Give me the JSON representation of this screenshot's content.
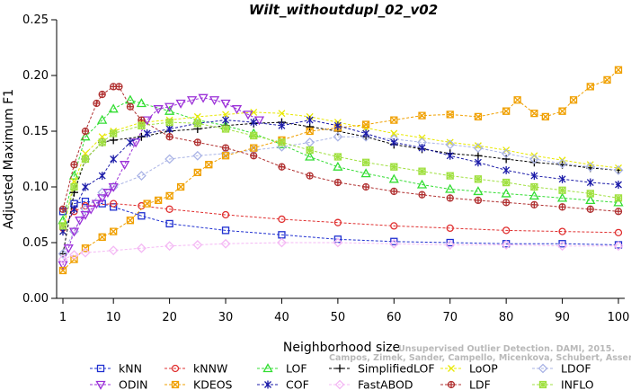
{
  "chart_data": {
    "type": "line",
    "title": "Wilt_withoutdupl_02_v02",
    "xlabel": "Neighborhood size",
    "ylabel": "Adjusted Maximum F1",
    "xlim": [
      1,
      100
    ],
    "ylim": [
      0,
      0.25
    ],
    "xticks": [
      1,
      10,
      20,
      30,
      40,
      50,
      60,
      70,
      80,
      90,
      100
    ],
    "yticks": [
      0.0,
      0.05,
      0.1,
      0.15,
      0.2,
      0.25
    ],
    "ytick_labels": [
      "0.00",
      "0.05",
      "0.10",
      "0.15",
      "0.20",
      "0.25"
    ],
    "grid": false,
    "legend_position": "bottom",
    "watermark_lines": [
      "Unsupervised Outlier Detection. DAMI, 2015.",
      "Campos, Zimek, Sander, Campello, Micenkova, Schubert, Assent, Houle"
    ],
    "series": [
      {
        "name": "kNN",
        "color": "#1f2fd0",
        "marker": "square",
        "points": [
          [
            1,
            0.078
          ],
          [
            3,
            0.085
          ],
          [
            5,
            0.087
          ],
          [
            8,
            0.085
          ],
          [
            10,
            0.082
          ],
          [
            15,
            0.074
          ],
          [
            20,
            0.067
          ],
          [
            30,
            0.061
          ],
          [
            40,
            0.057
          ],
          [
            50,
            0.053
          ],
          [
            60,
            0.051
          ],
          [
            70,
            0.05
          ],
          [
            80,
            0.049
          ],
          [
            90,
            0.049
          ],
          [
            100,
            0.048
          ]
        ]
      },
      {
        "name": "kNNW",
        "color": "#e03030",
        "marker": "circle",
        "points": [
          [
            1,
            0.063
          ],
          [
            3,
            0.078
          ],
          [
            5,
            0.083
          ],
          [
            10,
            0.085
          ],
          [
            15,
            0.083
          ],
          [
            20,
            0.08
          ],
          [
            30,
            0.075
          ],
          [
            40,
            0.071
          ],
          [
            50,
            0.068
          ],
          [
            60,
            0.065
          ],
          [
            70,
            0.063
          ],
          [
            80,
            0.061
          ],
          [
            90,
            0.06
          ],
          [
            100,
            0.059
          ]
        ]
      },
      {
        "name": "LOF",
        "color": "#33dd33",
        "marker": "triangle-up",
        "points": [
          [
            1,
            0.07
          ],
          [
            3,
            0.11
          ],
          [
            5,
            0.145
          ],
          [
            8,
            0.16
          ],
          [
            10,
            0.17
          ],
          [
            13,
            0.178
          ],
          [
            15,
            0.175
          ],
          [
            20,
            0.168
          ],
          [
            25,
            0.16
          ],
          [
            30,
            0.155
          ],
          [
            35,
            0.148
          ],
          [
            40,
            0.138
          ],
          [
            45,
            0.127
          ],
          [
            50,
            0.118
          ],
          [
            55,
            0.112
          ],
          [
            60,
            0.107
          ],
          [
            65,
            0.102
          ],
          [
            70,
            0.098
          ],
          [
            75,
            0.096
          ],
          [
            80,
            0.094
          ],
          [
            85,
            0.092
          ],
          [
            90,
            0.09
          ],
          [
            95,
            0.088
          ],
          [
            100,
            0.086
          ]
        ]
      },
      {
        "name": "SimplifiedLOF",
        "color": "#000000",
        "marker": "plus",
        "points": [
          [
            1,
            0.04
          ],
          [
            3,
            0.095
          ],
          [
            5,
            0.125
          ],
          [
            8,
            0.14
          ],
          [
            10,
            0.142
          ],
          [
            15,
            0.145
          ],
          [
            20,
            0.15
          ],
          [
            25,
            0.152
          ],
          [
            30,
            0.155
          ],
          [
            35,
            0.157
          ],
          [
            40,
            0.158
          ],
          [
            45,
            0.154
          ],
          [
            50,
            0.15
          ],
          [
            55,
            0.145
          ],
          [
            60,
            0.138
          ],
          [
            65,
            0.134
          ],
          [
            70,
            0.13
          ],
          [
            75,
            0.128
          ],
          [
            80,
            0.125
          ],
          [
            85,
            0.122
          ],
          [
            90,
            0.12
          ],
          [
            95,
            0.117
          ],
          [
            100,
            0.115
          ]
        ]
      },
      {
        "name": "LoOP",
        "color": "#e8e800",
        "marker": "x",
        "points": [
          [
            1,
            0.06
          ],
          [
            3,
            0.105
          ],
          [
            5,
            0.13
          ],
          [
            8,
            0.145
          ],
          [
            10,
            0.15
          ],
          [
            15,
            0.158
          ],
          [
            20,
            0.16
          ],
          [
            25,
            0.163
          ],
          [
            30,
            0.165
          ],
          [
            35,
            0.167
          ],
          [
            40,
            0.166
          ],
          [
            45,
            0.163
          ],
          [
            50,
            0.158
          ],
          [
            55,
            0.153
          ],
          [
            60,
            0.148
          ],
          [
            65,
            0.144
          ],
          [
            70,
            0.14
          ],
          [
            75,
            0.137
          ],
          [
            80,
            0.133
          ],
          [
            85,
            0.128
          ],
          [
            90,
            0.124
          ],
          [
            95,
            0.12
          ],
          [
            100,
            0.117
          ]
        ]
      },
      {
        "name": "LDOF",
        "color": "#aab4e6",
        "marker": "diamond",
        "points": [
          [
            1,
            0.04
          ],
          [
            3,
            0.06
          ],
          [
            5,
            0.08
          ],
          [
            8,
            0.095
          ],
          [
            10,
            0.1
          ],
          [
            15,
            0.11
          ],
          [
            20,
            0.125
          ],
          [
            25,
            0.128
          ],
          [
            30,
            0.13
          ],
          [
            35,
            0.133
          ],
          [
            40,
            0.136
          ],
          [
            45,
            0.14
          ],
          [
            50,
            0.145
          ],
          [
            55,
            0.145
          ],
          [
            60,
            0.143
          ],
          [
            65,
            0.14
          ],
          [
            70,
            0.138
          ],
          [
            75,
            0.135
          ],
          [
            80,
            0.13
          ],
          [
            85,
            0.125
          ],
          [
            90,
            0.121
          ],
          [
            95,
            0.118
          ],
          [
            100,
            0.115
          ]
        ]
      },
      {
        "name": "ODIN",
        "color": "#9b30d8",
        "marker": "triangle-down",
        "points": [
          [
            1,
            0.03
          ],
          [
            2,
            0.045
          ],
          [
            3,
            0.06
          ],
          [
            4,
            0.07
          ],
          [
            5,
            0.075
          ],
          [
            6,
            0.08
          ],
          [
            7,
            0.085
          ],
          [
            8,
            0.09
          ],
          [
            9,
            0.095
          ],
          [
            10,
            0.1
          ],
          [
            12,
            0.12
          ],
          [
            14,
            0.14
          ],
          [
            16,
            0.16
          ],
          [
            18,
            0.17
          ],
          [
            20,
            0.172
          ],
          [
            22,
            0.175
          ],
          [
            24,
            0.178
          ],
          [
            26,
            0.18
          ],
          [
            28,
            0.178
          ],
          [
            30,
            0.175
          ],
          [
            32,
            0.17
          ],
          [
            34,
            0.165
          ],
          [
            36,
            0.16
          ]
        ]
      },
      {
        "name": "KDEOS",
        "color": "#f0a000",
        "marker": "square-x",
        "points": [
          [
            1,
            0.025
          ],
          [
            3,
            0.035
          ],
          [
            5,
            0.045
          ],
          [
            8,
            0.055
          ],
          [
            10,
            0.06
          ],
          [
            13,
            0.07
          ],
          [
            16,
            0.085
          ],
          [
            18,
            0.088
          ],
          [
            20,
            0.092
          ],
          [
            22,
            0.1
          ],
          [
            25,
            0.113
          ],
          [
            27,
            0.12
          ],
          [
            30,
            0.128
          ],
          [
            35,
            0.135
          ],
          [
            40,
            0.142
          ],
          [
            45,
            0.15
          ],
          [
            50,
            0.153
          ],
          [
            55,
            0.156
          ],
          [
            60,
            0.16
          ],
          [
            65,
            0.164
          ],
          [
            70,
            0.165
          ],
          [
            75,
            0.163
          ],
          [
            80,
            0.168
          ],
          [
            82,
            0.178
          ],
          [
            85,
            0.166
          ],
          [
            87,
            0.163
          ],
          [
            90,
            0.168
          ],
          [
            92,
            0.178
          ],
          [
            95,
            0.19
          ],
          [
            98,
            0.196
          ],
          [
            100,
            0.205
          ]
        ]
      },
      {
        "name": "COF",
        "color": "#1a1aa8",
        "marker": "asterisk",
        "points": [
          [
            1,
            0.06
          ],
          [
            3,
            0.08
          ],
          [
            5,
            0.1
          ],
          [
            8,
            0.11
          ],
          [
            10,
            0.125
          ],
          [
            13,
            0.14
          ],
          [
            16,
            0.148
          ],
          [
            20,
            0.152
          ],
          [
            25,
            0.157
          ],
          [
            30,
            0.16
          ],
          [
            35,
            0.158
          ],
          [
            40,
            0.155
          ],
          [
            45,
            0.16
          ],
          [
            50,
            0.155
          ],
          [
            55,
            0.148
          ],
          [
            60,
            0.14
          ],
          [
            65,
            0.135
          ],
          [
            70,
            0.128
          ],
          [
            75,
            0.122
          ],
          [
            80,
            0.115
          ],
          [
            85,
            0.11
          ],
          [
            90,
            0.107
          ],
          [
            95,
            0.104
          ],
          [
            100,
            0.102
          ]
        ]
      },
      {
        "name": "FastABOD",
        "color": "#f4b8f4",
        "marker": "diamond",
        "points": [
          [
            1,
            0.035
          ],
          [
            3,
            0.039
          ],
          [
            5,
            0.041
          ],
          [
            10,
            0.043
          ],
          [
            15,
            0.045
          ],
          [
            20,
            0.047
          ],
          [
            25,
            0.048
          ],
          [
            30,
            0.049
          ],
          [
            40,
            0.05
          ],
          [
            50,
            0.05
          ],
          [
            60,
            0.049
          ],
          [
            70,
            0.048
          ],
          [
            80,
            0.048
          ],
          [
            90,
            0.047
          ],
          [
            100,
            0.047
          ]
        ]
      },
      {
        "name": "LDF",
        "color": "#b03030",
        "marker": "circle-plus",
        "points": [
          [
            1,
            0.08
          ],
          [
            3,
            0.12
          ],
          [
            5,
            0.15
          ],
          [
            7,
            0.175
          ],
          [
            8,
            0.183
          ],
          [
            10,
            0.19
          ],
          [
            11,
            0.19
          ],
          [
            13,
            0.172
          ],
          [
            15,
            0.16
          ],
          [
            20,
            0.145
          ],
          [
            25,
            0.14
          ],
          [
            30,
            0.135
          ],
          [
            35,
            0.128
          ],
          [
            40,
            0.118
          ],
          [
            45,
            0.11
          ],
          [
            50,
            0.104
          ],
          [
            55,
            0.1
          ],
          [
            60,
            0.096
          ],
          [
            65,
            0.093
          ],
          [
            70,
            0.09
          ],
          [
            75,
            0.088
          ],
          [
            80,
            0.086
          ],
          [
            85,
            0.084
          ],
          [
            90,
            0.082
          ],
          [
            95,
            0.08
          ],
          [
            100,
            0.078
          ]
        ]
      },
      {
        "name": "INFLO",
        "color": "#a0e040",
        "marker": "star",
        "points": [
          [
            1,
            0.065
          ],
          [
            3,
            0.1
          ],
          [
            5,
            0.125
          ],
          [
            8,
            0.14
          ],
          [
            10,
            0.148
          ],
          [
            15,
            0.155
          ],
          [
            20,
            0.158
          ],
          [
            25,
            0.157
          ],
          [
            30,
            0.152
          ],
          [
            35,
            0.146
          ],
          [
            40,
            0.14
          ],
          [
            45,
            0.133
          ],
          [
            50,
            0.127
          ],
          [
            55,
            0.122
          ],
          [
            60,
            0.118
          ],
          [
            65,
            0.114
          ],
          [
            70,
            0.11
          ],
          [
            75,
            0.107
          ],
          [
            80,
            0.104
          ],
          [
            85,
            0.1
          ],
          [
            90,
            0.097
          ],
          [
            95,
            0.094
          ],
          [
            100,
            0.09
          ]
        ]
      }
    ]
  }
}
